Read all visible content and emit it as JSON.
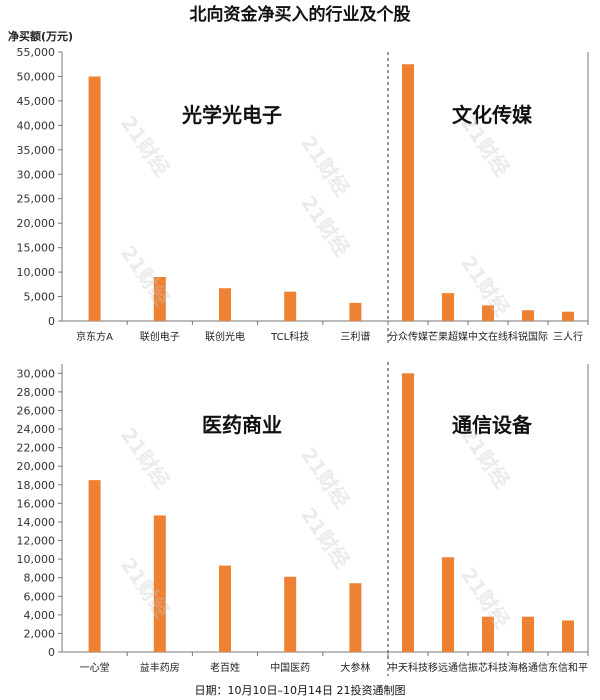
{
  "title": "北向资金净买入的行业及个股",
  "ylabel": "净买额(万元)",
  "footer": "日期：10月10日–10月14日 21投资通制图",
  "watermark": "21财经",
  "colors": {
    "bar": "#ef8232"
  },
  "chart_data": [
    {
      "type": "bar",
      "panel": "top",
      "ylim": [
        0,
        55000
      ],
      "yticks": [
        0,
        5000,
        10000,
        15000,
        20000,
        25000,
        30000,
        35000,
        40000,
        45000,
        50000,
        55000
      ],
      "groups": [
        {
          "sector": "光学光电子",
          "categories": [
            "京东方A",
            "联创电子",
            "联创光电",
            "TCL科技",
            "三利谱"
          ],
          "values": [
            50000,
            9000,
            6700,
            6000,
            3700
          ]
        },
        {
          "sector": "文化传媒",
          "categories": [
            "分众传媒",
            "芒果超媒",
            "中文在线",
            "科锐国际",
            "三人行"
          ],
          "values": [
            52500,
            5700,
            3200,
            2200,
            1900
          ]
        }
      ]
    },
    {
      "type": "bar",
      "panel": "bottom",
      "ylim": [
        0,
        31000
      ],
      "yticks": [
        0,
        2000,
        4000,
        6000,
        8000,
        10000,
        12000,
        14000,
        16000,
        18000,
        20000,
        22000,
        24000,
        26000,
        28000,
        30000
      ],
      "groups": [
        {
          "sector": "医药商业",
          "categories": [
            "一心堂",
            "益丰药房",
            "老百姓",
            "中国医药",
            "大参林"
          ],
          "values": [
            18500,
            14700,
            9300,
            8100,
            7400
          ]
        },
        {
          "sector": "通信设备",
          "categories": [
            "中天科技",
            "移远通信",
            "振芯科技",
            "海格通信",
            "东信和平"
          ],
          "values": [
            30000,
            10200,
            3800,
            3800,
            3400
          ]
        }
      ]
    }
  ]
}
